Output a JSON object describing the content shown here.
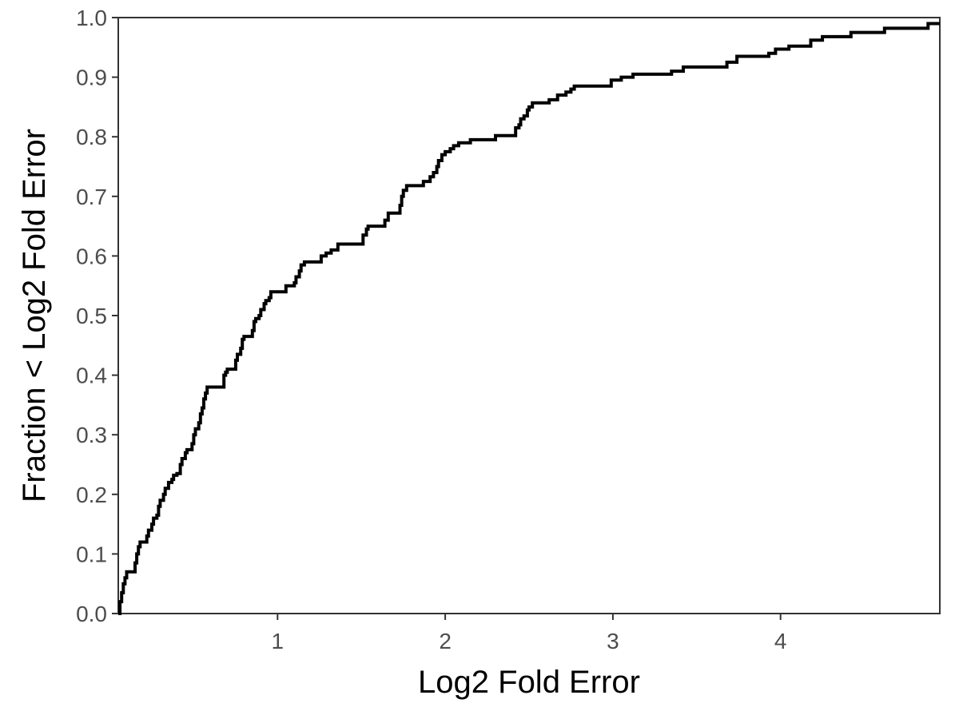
{
  "chart_data": {
    "type": "line",
    "subtype": "ecdf-step",
    "title": "",
    "xlabel": "Log2 Fold Error",
    "ylabel": "Fraction < Log2 Fold Error",
    "xlim": [
      0.05,
      4.95
    ],
    "ylim": [
      0,
      1
    ],
    "x_ticks": [
      {
        "value": 1,
        "label": "1"
      },
      {
        "value": 2,
        "label": "2"
      },
      {
        "value": 3,
        "label": "3"
      },
      {
        "value": 4,
        "label": "4"
      }
    ],
    "y_ticks": [
      {
        "value": 0.0,
        "label": "0.0"
      },
      {
        "value": 0.1,
        "label": "0.1"
      },
      {
        "value": 0.2,
        "label": "0.2"
      },
      {
        "value": 0.3,
        "label": "0.3"
      },
      {
        "value": 0.4,
        "label": "0.4"
      },
      {
        "value": 0.5,
        "label": "0.5"
      },
      {
        "value": 0.6,
        "label": "0.6"
      },
      {
        "value": 0.7,
        "label": "0.7"
      },
      {
        "value": 0.8,
        "label": "0.8"
      },
      {
        "value": 0.9,
        "label": "0.9"
      },
      {
        "value": 1.0,
        "label": "1.0"
      }
    ],
    "grid": false,
    "legend": "none",
    "line_color": "#000000",
    "series": [
      {
        "points": [
          [
            0.05,
            0.0
          ],
          [
            0.06,
            0.02
          ],
          [
            0.07,
            0.035
          ],
          [
            0.08,
            0.05
          ],
          [
            0.09,
            0.06
          ],
          [
            0.1,
            0.07
          ],
          [
            0.14,
            0.07
          ],
          [
            0.15,
            0.085
          ],
          [
            0.16,
            0.1
          ],
          [
            0.17,
            0.112
          ],
          [
            0.18,
            0.12
          ],
          [
            0.21,
            0.12
          ],
          [
            0.22,
            0.13
          ],
          [
            0.23,
            0.14
          ],
          [
            0.25,
            0.15
          ],
          [
            0.26,
            0.16
          ],
          [
            0.28,
            0.165
          ],
          [
            0.29,
            0.18
          ],
          [
            0.3,
            0.19
          ],
          [
            0.32,
            0.2
          ],
          [
            0.33,
            0.21
          ],
          [
            0.35,
            0.22
          ],
          [
            0.37,
            0.225
          ],
          [
            0.38,
            0.232
          ],
          [
            0.4,
            0.235
          ],
          [
            0.42,
            0.25
          ],
          [
            0.43,
            0.26
          ],
          [
            0.45,
            0.27
          ],
          [
            0.46,
            0.275
          ],
          [
            0.49,
            0.285
          ],
          [
            0.5,
            0.3
          ],
          [
            0.51,
            0.31
          ],
          [
            0.53,
            0.32
          ],
          [
            0.54,
            0.335
          ],
          [
            0.55,
            0.345
          ],
          [
            0.56,
            0.36
          ],
          [
            0.57,
            0.37
          ],
          [
            0.58,
            0.38
          ],
          [
            0.67,
            0.38
          ],
          [
            0.68,
            0.4
          ],
          [
            0.69,
            0.405
          ],
          [
            0.7,
            0.41
          ],
          [
            0.74,
            0.41
          ],
          [
            0.75,
            0.425
          ],
          [
            0.76,
            0.435
          ],
          [
            0.78,
            0.445
          ],
          [
            0.79,
            0.46
          ],
          [
            0.8,
            0.465
          ],
          [
            0.84,
            0.465
          ],
          [
            0.85,
            0.475
          ],
          [
            0.86,
            0.49
          ],
          [
            0.87,
            0.495
          ],
          [
            0.89,
            0.5
          ],
          [
            0.9,
            0.51
          ],
          [
            0.92,
            0.52
          ],
          [
            0.93,
            0.525
          ],
          [
            0.95,
            0.53
          ],
          [
            0.96,
            0.54
          ],
          [
            1.04,
            0.54
          ],
          [
            1.05,
            0.55
          ],
          [
            1.1,
            0.555
          ],
          [
            1.11,
            0.565
          ],
          [
            1.13,
            0.575
          ],
          [
            1.14,
            0.585
          ],
          [
            1.16,
            0.59
          ],
          [
            1.25,
            0.59
          ],
          [
            1.26,
            0.6
          ],
          [
            1.29,
            0.605
          ],
          [
            1.32,
            0.61
          ],
          [
            1.36,
            0.62
          ],
          [
            1.5,
            0.62
          ],
          [
            1.51,
            0.635
          ],
          [
            1.53,
            0.645
          ],
          [
            1.54,
            0.65
          ],
          [
            1.63,
            0.65
          ],
          [
            1.64,
            0.66
          ],
          [
            1.66,
            0.672
          ],
          [
            1.72,
            0.672
          ],
          [
            1.73,
            0.685
          ],
          [
            1.74,
            0.7
          ],
          [
            1.75,
            0.71
          ],
          [
            1.77,
            0.718
          ],
          [
            1.86,
            0.718
          ],
          [
            1.87,
            0.725
          ],
          [
            1.91,
            0.733
          ],
          [
            1.93,
            0.74
          ],
          [
            1.95,
            0.75
          ],
          [
            1.96,
            0.76
          ],
          [
            1.98,
            0.77
          ],
          [
            2.0,
            0.775
          ],
          [
            2.03,
            0.78
          ],
          [
            2.05,
            0.785
          ],
          [
            2.08,
            0.79
          ],
          [
            2.15,
            0.795
          ],
          [
            2.26,
            0.795
          ],
          [
            2.3,
            0.802
          ],
          [
            2.41,
            0.802
          ],
          [
            2.42,
            0.815
          ],
          [
            2.44,
            0.82
          ],
          [
            2.45,
            0.83
          ],
          [
            2.47,
            0.835
          ],
          [
            2.49,
            0.845
          ],
          [
            2.5,
            0.85
          ],
          [
            2.52,
            0.857
          ],
          [
            2.62,
            0.862
          ],
          [
            2.67,
            0.87
          ],
          [
            2.72,
            0.875
          ],
          [
            2.75,
            0.88
          ],
          [
            2.77,
            0.885
          ],
          [
            2.96,
            0.885
          ],
          [
            2.99,
            0.895
          ],
          [
            3.05,
            0.9
          ],
          [
            3.12,
            0.905
          ],
          [
            3.35,
            0.91
          ],
          [
            3.42,
            0.917
          ],
          [
            3.68,
            0.925
          ],
          [
            3.74,
            0.935
          ],
          [
            3.93,
            0.94
          ],
          [
            3.97,
            0.947
          ],
          [
            4.05,
            0.952
          ],
          [
            4.18,
            0.962
          ],
          [
            4.25,
            0.968
          ],
          [
            4.42,
            0.975
          ],
          [
            4.62,
            0.982
          ],
          [
            4.88,
            0.99
          ],
          [
            4.95,
            0.99
          ]
        ]
      }
    ]
  }
}
